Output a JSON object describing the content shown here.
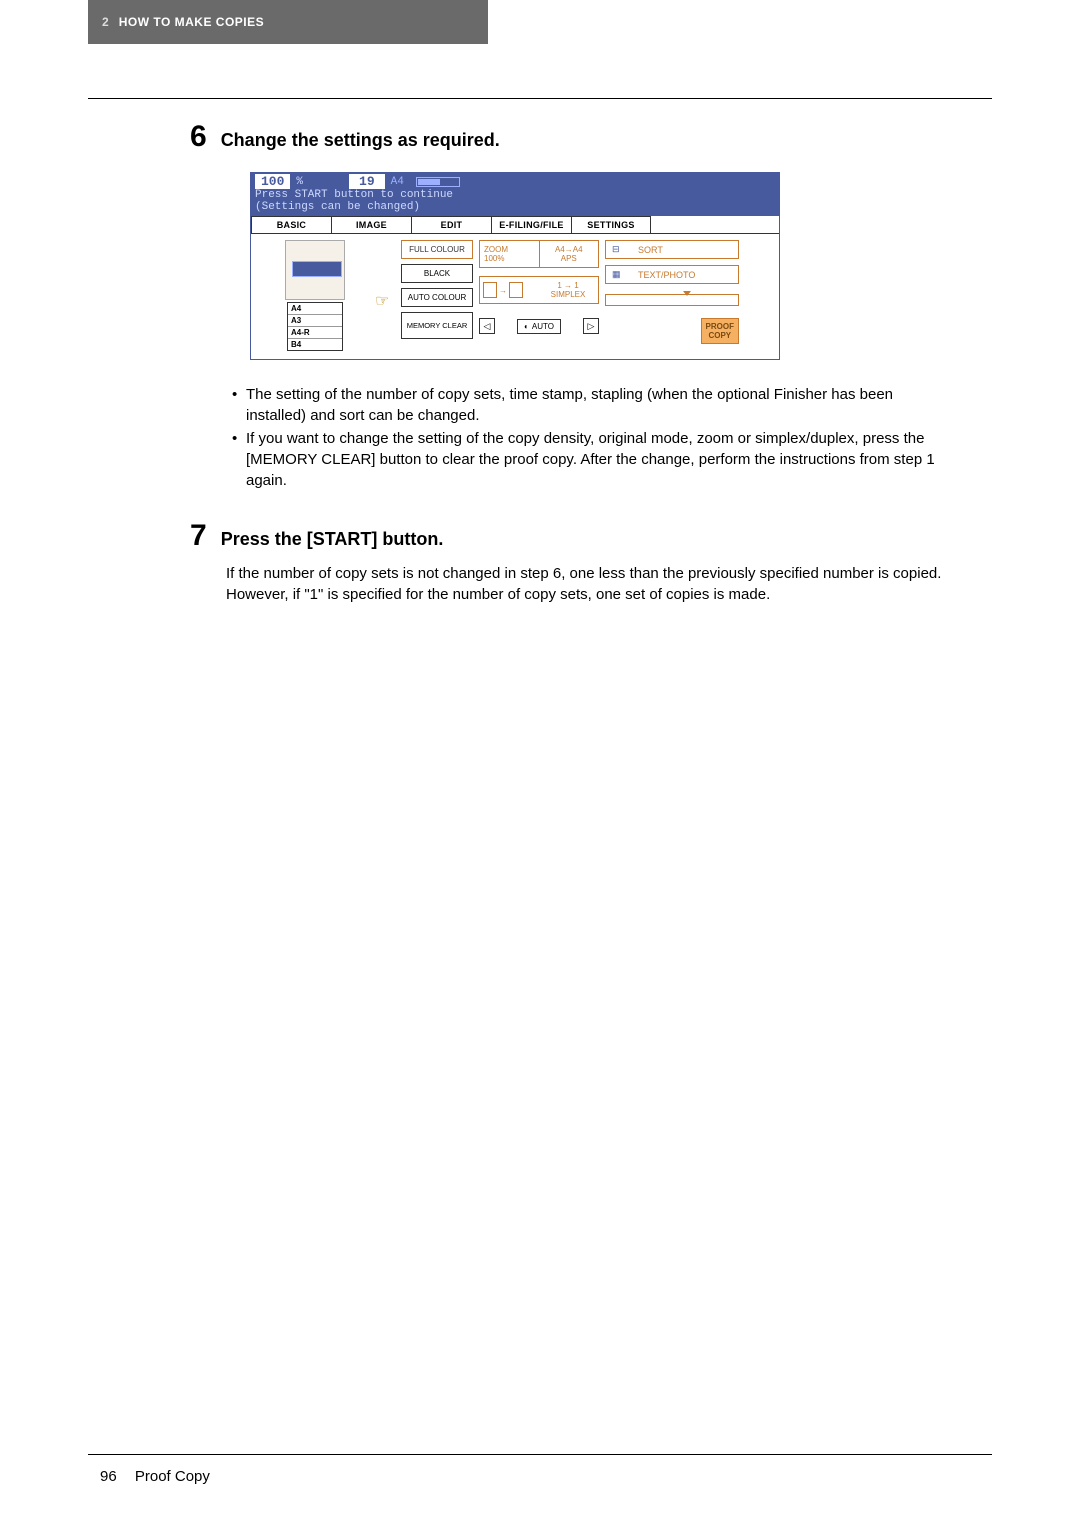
{
  "header": {
    "chapter_num": "2",
    "chapter_title": "HOW TO MAKE COPIES"
  },
  "step6": {
    "num": "6",
    "title": "Change the settings as required."
  },
  "screenshot": {
    "status": {
      "zoom": "100",
      "pct": "%",
      "count": "19",
      "size": "A4",
      "line1": "Press START button to continue",
      "line2": "(Settings can be changed)"
    },
    "tabs": [
      "BASIC",
      "IMAGE",
      "EDIT",
      "E-FILING/FILE",
      "SETTINGS"
    ],
    "drawers": [
      "A4",
      "A3",
      "A4-R",
      "B4"
    ],
    "col_btns": {
      "full_colour": "FULL COLOUR",
      "black": "BLACK",
      "auto_colour": "AUTO COLOUR",
      "memory_clear": "MEMORY CLEAR"
    },
    "zoom_info": {
      "l1": "ZOOM",
      "l2": "100%",
      "r1": "A4→A4",
      "r2": "APS"
    },
    "simplex": {
      "label": "1 → 1",
      "txt": "SIMPLEX"
    },
    "sort": "SORT",
    "textphoto": "TEXT/PHOTO",
    "auto": "AUTO",
    "proof": {
      "l1": "PROOF",
      "l2": "COPY"
    }
  },
  "bullets": [
    "The setting of the number of copy sets, time stamp, stapling (when the optional Finisher has been installed) and sort can be changed.",
    "If you want to change the setting of the copy density, original mode, zoom or simplex/duplex, press the [MEMORY CLEAR] button to clear the proof copy. After the change, perform the instructions from step 1 again."
  ],
  "step7": {
    "num": "7",
    "title": "Press the [START] button.",
    "body": "If the number of copy sets is not changed in step 6, one less than the previously specified number is copied. However, if \"1\" is specified for the number of copy sets, one set of copies is made."
  },
  "footer": {
    "page": "96",
    "section": "Proof Copy"
  }
}
